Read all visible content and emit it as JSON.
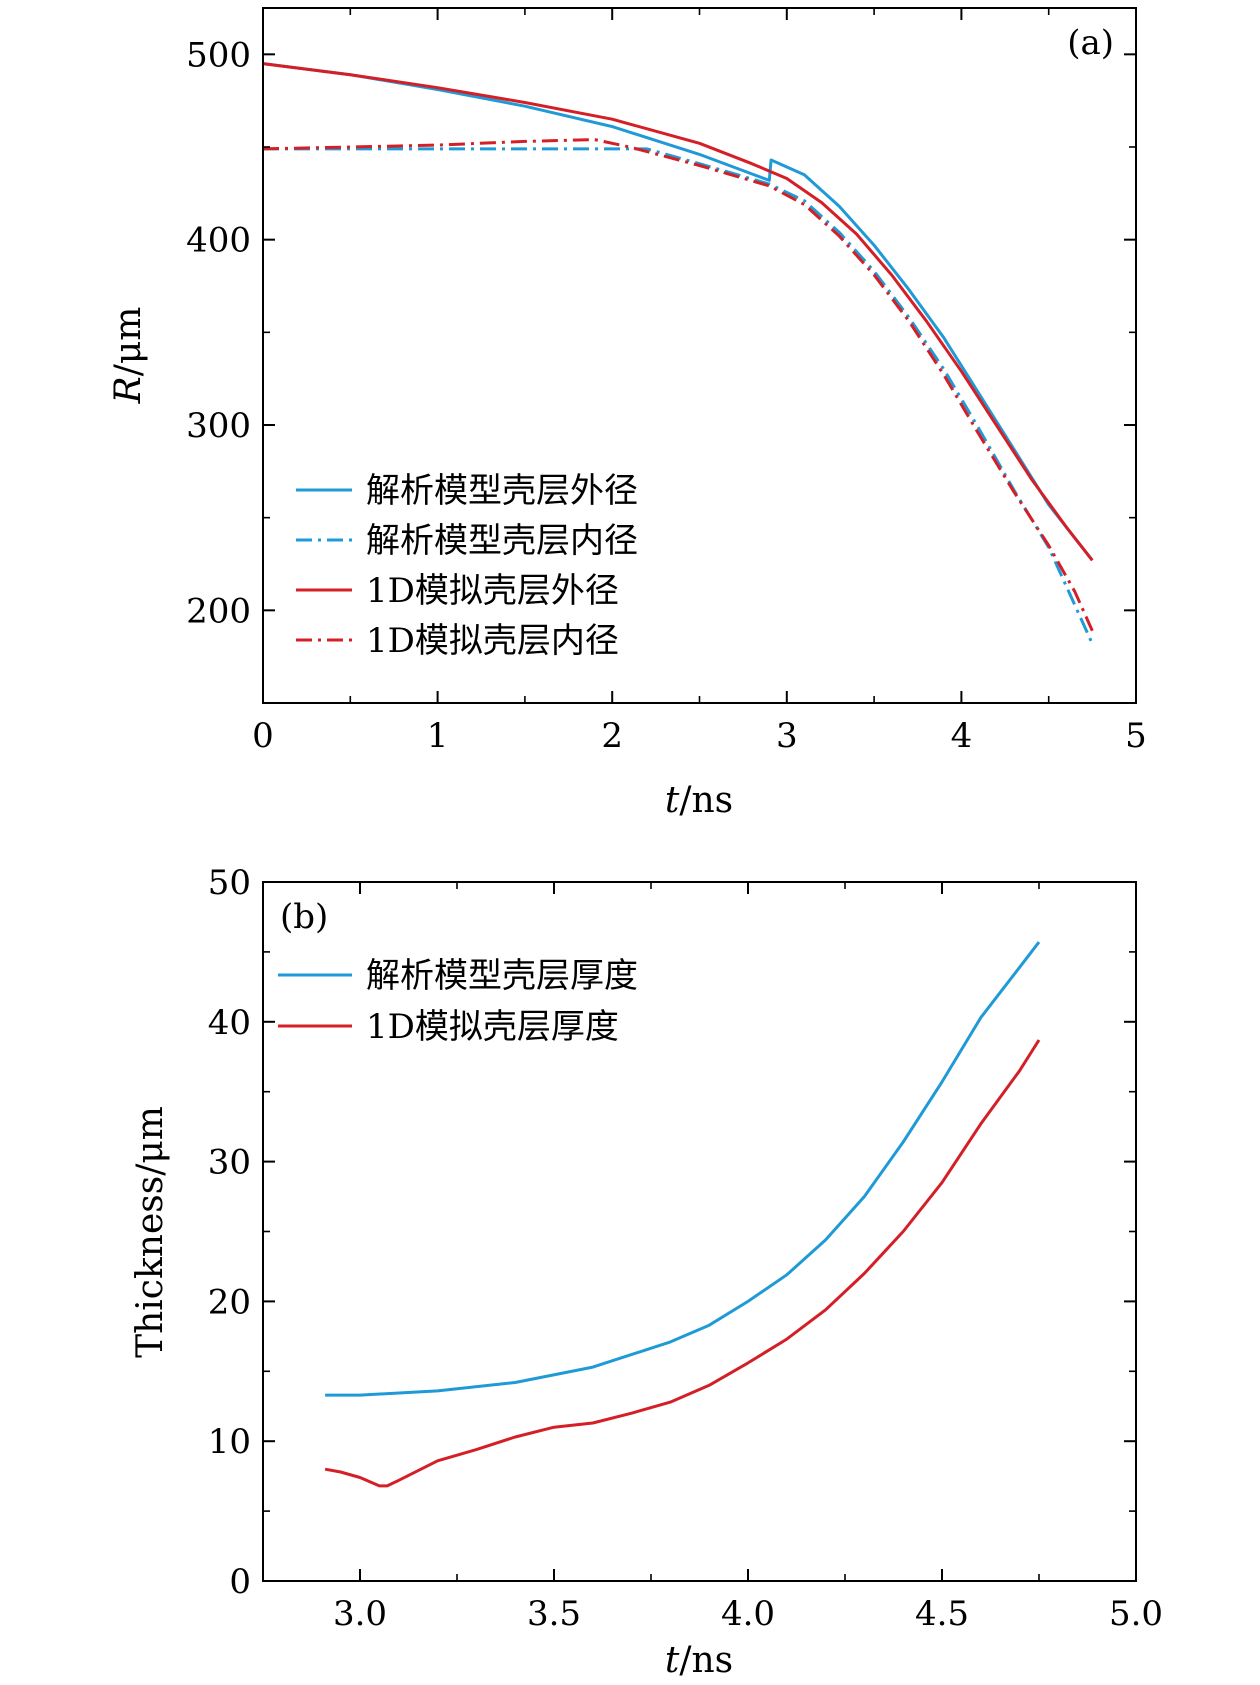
{
  "chart_data": [
    {
      "type": "line",
      "panel_label": "(a)",
      "xlabel": {
        "italic": "t",
        "unit": "/ns"
      },
      "ylabel": {
        "italic": "R",
        "unit": "/μm"
      },
      "xlim": [
        0,
        5
      ],
      "ylim": [
        150,
        525
      ],
      "xticks": [
        "0",
        "1",
        "2",
        "3",
        "4",
        "5"
      ],
      "xtick_values": [
        0,
        1,
        2,
        3,
        4,
        5
      ],
      "yticks": [
        "200",
        "300",
        "400",
        "500"
      ],
      "ytick_values": [
        200,
        300,
        400,
        500
      ],
      "x_minor_step": 0.5,
      "y_minor_step": 50,
      "grid": false,
      "legend_position": "bottom-left",
      "series": [
        {
          "name": "解析模型壳层外径",
          "color": "#1f9ad6",
          "dash": "solid",
          "points": [
            [
              0,
              495
            ],
            [
              0.5,
              489
            ],
            [
              1,
              481
            ],
            [
              1.5,
              472
            ],
            [
              2,
              461
            ],
            [
              2.5,
              446
            ],
            [
              2.9,
              432
            ],
            [
              2.91,
              443
            ],
            [
              3.1,
              435
            ],
            [
              3.3,
              418
            ],
            [
              3.5,
              397
            ],
            [
              3.7,
              373
            ],
            [
              3.9,
              347
            ],
            [
              4.1,
              317
            ],
            [
              4.3,
              287
            ],
            [
              4.5,
              257
            ],
            [
              4.75,
              227
            ]
          ]
        },
        {
          "name": "解析模型壳层内径",
          "color": "#1f9ad6",
          "dash": "dashdot",
          "points": [
            [
              0,
              449
            ],
            [
              0.5,
              449
            ],
            [
              1,
              449
            ],
            [
              1.5,
              449
            ],
            [
              2,
              449
            ],
            [
              2.2,
              449
            ],
            [
              2.5,
              441
            ],
            [
              2.9,
              430
            ],
            [
              3.1,
              421
            ],
            [
              3.3,
              404
            ],
            [
              3.5,
              383
            ],
            [
              3.7,
              358
            ],
            [
              3.9,
              330
            ],
            [
              4.1,
              298
            ],
            [
              4.3,
              265
            ],
            [
              4.5,
              234
            ],
            [
              4.75,
              182
            ]
          ]
        },
        {
          "name": "1D模拟壳层外径",
          "color": "#d41f26",
          "dash": "solid",
          "points": [
            [
              0,
              495
            ],
            [
              0.5,
              489
            ],
            [
              1,
              482
            ],
            [
              1.5,
              474
            ],
            [
              2,
              465
            ],
            [
              2.5,
              452
            ],
            [
              2.8,
              441
            ],
            [
              3,
              433
            ],
            [
              3.2,
              420
            ],
            [
              3.4,
              403
            ],
            [
              3.6,
              381
            ],
            [
              3.8,
              356
            ],
            [
              4,
              329
            ],
            [
              4.2,
              300
            ],
            [
              4.4,
              271
            ],
            [
              4.6,
              245
            ],
            [
              4.75,
              227
            ]
          ]
        },
        {
          "name": "1D模拟壳层内径",
          "color": "#d41f26",
          "dash": "dashdot",
          "points": [
            [
              0,
              449
            ],
            [
              0.5,
              450
            ],
            [
              1,
              451
            ],
            [
              1.5,
              453
            ],
            [
              1.9,
              454
            ],
            [
              2.1,
              450
            ],
            [
              2.5,
              440
            ],
            [
              2.9,
              429
            ],
            [
              3.1,
              419
            ],
            [
              3.3,
              402
            ],
            [
              3.5,
              381
            ],
            [
              3.7,
              356
            ],
            [
              3.9,
              327
            ],
            [
              4.1,
              295
            ],
            [
              4.3,
              264
            ],
            [
              4.5,
              235
            ],
            [
              4.65,
              210
            ],
            [
              4.75,
              189
            ]
          ]
        }
      ]
    },
    {
      "type": "line",
      "panel_label": "(b)",
      "xlabel": {
        "italic": "t",
        "unit": "/ns"
      },
      "ylabel": {
        "italic": "",
        "unit": "Thickness/μm"
      },
      "xlim": [
        2.75,
        5.0
      ],
      "ylim": [
        0,
        50
      ],
      "xticks": [
        "3.0",
        "3.5",
        "4.0",
        "4.5",
        "5.0"
      ],
      "xtick_values": [
        3.0,
        3.5,
        4.0,
        4.5,
        5.0
      ],
      "yticks": [
        "0",
        "10",
        "20",
        "30",
        "40",
        "50"
      ],
      "ytick_values": [
        0,
        10,
        20,
        30,
        40,
        50
      ],
      "x_minor_step": 0.25,
      "y_minor_step": 5,
      "grid": false,
      "legend_position": "top-left",
      "series": [
        {
          "name": "解析模型壳层厚度",
          "color": "#1f9ad6",
          "dash": "solid",
          "points": [
            [
              2.91,
              13.3
            ],
            [
              3.0,
              13.3
            ],
            [
              3.2,
              13.6
            ],
            [
              3.4,
              14.2
            ],
            [
              3.6,
              15.3
            ],
            [
              3.8,
              17.1
            ],
            [
              3.9,
              18.3
            ],
            [
              4.0,
              20.0
            ],
            [
              4.1,
              21.9
            ],
            [
              4.2,
              24.4
            ],
            [
              4.3,
              27.5
            ],
            [
              4.4,
              31.4
            ],
            [
              4.5,
              35.7
            ],
            [
              4.6,
              40.3
            ],
            [
              4.7,
              43.9
            ],
            [
              4.75,
              45.7
            ]
          ]
        },
        {
          "name": "1D模拟壳层厚度",
          "color": "#d41f26",
          "dash": "solid",
          "points": [
            [
              2.91,
              8.0
            ],
            [
              2.95,
              7.8
            ],
            [
              3.0,
              7.4
            ],
            [
              3.05,
              6.8
            ],
            [
              3.07,
              6.8
            ],
            [
              3.1,
              7.2
            ],
            [
              3.2,
              8.6
            ],
            [
              3.3,
              9.4
            ],
            [
              3.4,
              10.3
            ],
            [
              3.5,
              11.0
            ],
            [
              3.6,
              11.3
            ],
            [
              3.7,
              12.0
            ],
            [
              3.8,
              12.8
            ],
            [
              3.9,
              14.0
            ],
            [
              4.0,
              15.6
            ],
            [
              4.1,
              17.3
            ],
            [
              4.2,
              19.4
            ],
            [
              4.3,
              22.0
            ],
            [
              4.4,
              25.0
            ],
            [
              4.5,
              28.5
            ],
            [
              4.6,
              32.7
            ],
            [
              4.65,
              34.6
            ],
            [
              4.7,
              36.5
            ],
            [
              4.75,
              38.7
            ]
          ]
        }
      ]
    }
  ]
}
